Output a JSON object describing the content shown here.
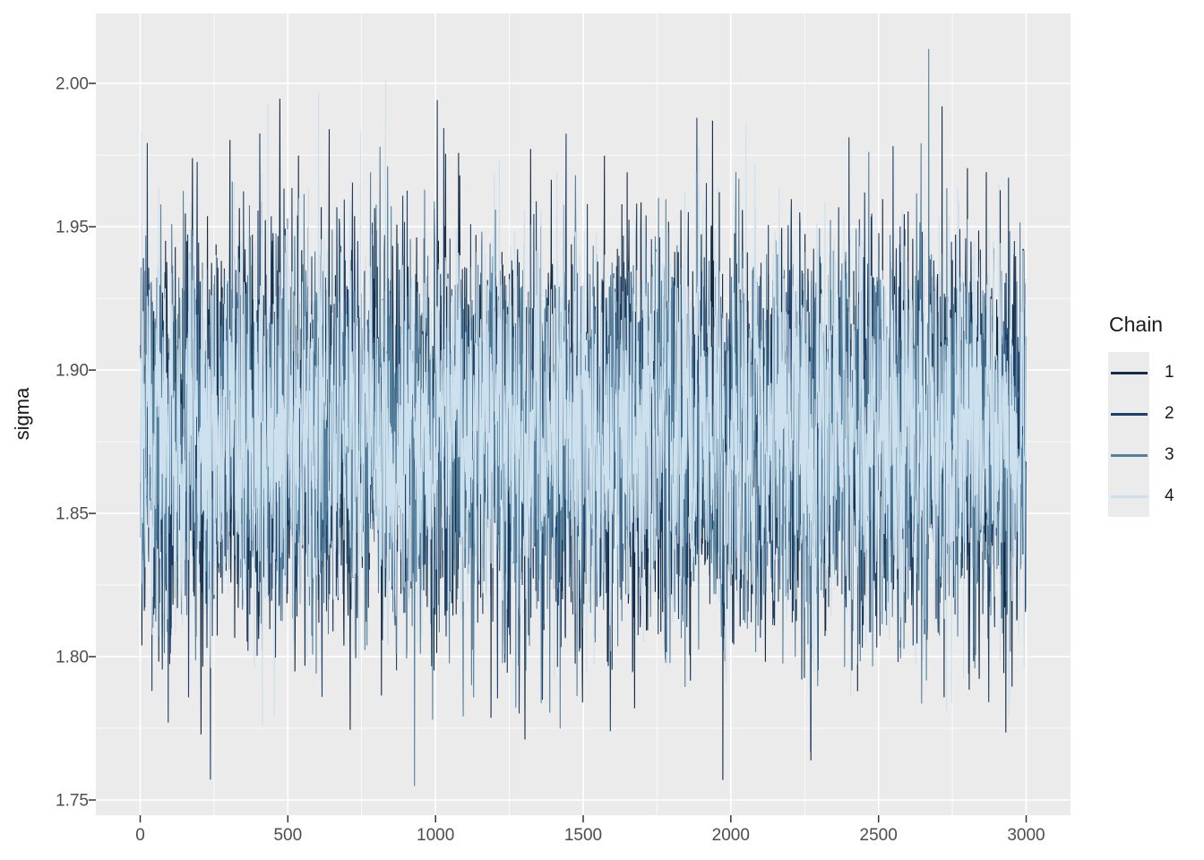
{
  "chart_data": {
    "type": "line",
    "subtype": "mcmc-trace-plot",
    "title": "",
    "xlabel": "",
    "ylabel": "sigma",
    "xlim": [
      -150,
      3150
    ],
    "ylim": [
      1.7447,
      2.0244
    ],
    "x_ticks": [
      0,
      500,
      1000,
      1500,
      2000,
      2500,
      3000
    ],
    "x_tick_labels": [
      "0",
      "500",
      "1000",
      "1500",
      "2000",
      "2500",
      "3000"
    ],
    "x_minor_ticks": [
      250,
      750,
      1250,
      1750,
      2250,
      2750
    ],
    "y_ticks": [
      1.75,
      1.8,
      1.85,
      1.9,
      1.95,
      2.0
    ],
    "y_tick_labels": [
      "1.75",
      "1.80",
      "1.85",
      "1.90",
      "1.95",
      "2.00"
    ],
    "y_minor_ticks": [
      1.775,
      1.825,
      1.875,
      1.925,
      1.975
    ],
    "grid": true,
    "panel_background": "#EBEBEB",
    "grid_major_color": "#FFFFFF",
    "grid_minor_color": "#FFFFFF",
    "tick_mark_color": "#333333",
    "axis_text_color": "#4D4D4D",
    "axis_title_color": "#1a1a1a",
    "legend": {
      "title": "Chain",
      "position": "right",
      "entries": [
        {
          "label": "1",
          "color": "#132B43"
        },
        {
          "label": "2",
          "color": "#1E3F68"
        },
        {
          "label": "3",
          "color": "#54809E"
        },
        {
          "label": "4",
          "color": "#CDE0ED"
        }
      ]
    },
    "series": [
      {
        "name": "1",
        "color": "#132B43",
        "n": 3000,
        "mean": 1.877,
        "sd": 0.033,
        "ar1": 0.25,
        "seed": 11,
        "notable_points": [
          [
            640,
            1.984
          ],
          [
            1973,
            1.757
          ],
          [
            2715,
            1.992
          ]
        ]
      },
      {
        "name": "2",
        "color": "#1E3F68",
        "n": 3000,
        "mean": 1.877,
        "sd": 0.033,
        "ar1": 0.25,
        "seed": 22,
        "notable_points": [
          [
            95,
            1.777
          ],
          [
            1885,
            1.988
          ]
        ]
      },
      {
        "name": "3",
        "color": "#54809E",
        "n": 3000,
        "mean": 1.877,
        "sd": 0.033,
        "ar1": 0.25,
        "seed": 33,
        "notable_points": [
          [
            990,
            1.778
          ],
          [
            2670,
            2.012
          ]
        ]
      },
      {
        "name": "4",
        "color": "#CDE0ED",
        "n": 3000,
        "mean": 1.877,
        "sd": 0.033,
        "ar1": 0.25,
        "seed": 44,
        "notable_points": [
          [
            5,
            1.983
          ],
          [
            433,
            1.993
          ]
        ]
      }
    ],
    "description": "Trace plot of posterior draws of sigma for 4 MCMC chains, 3000 iterations each; chains overplotted in order 1 (darkest) to 4 (lightest)."
  }
}
